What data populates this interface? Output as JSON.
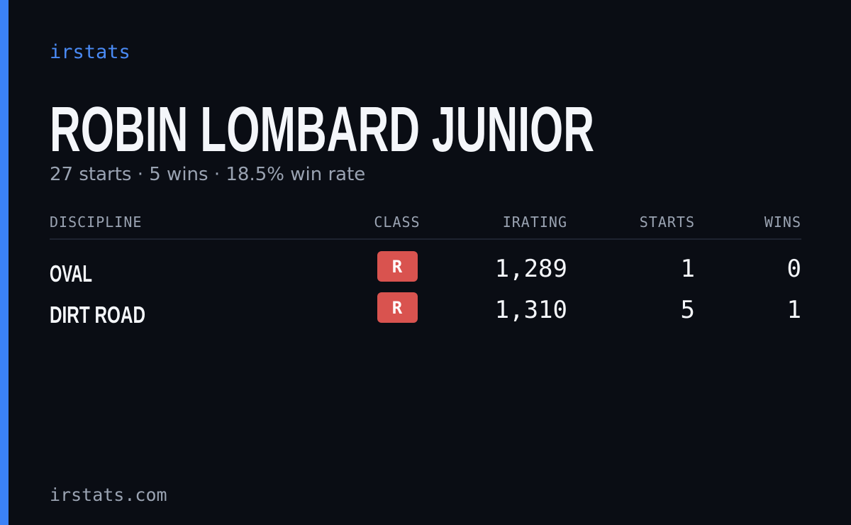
{
  "brand": "irstats",
  "title": "ROBIN LOMBARD JUNIOR",
  "subtitle": "27 starts · 5 wins · 18.5% win rate",
  "table": {
    "columns": [
      "DISCIPLINE",
      "CLASS",
      "IRATING",
      "STARTS",
      "WINS"
    ],
    "rows": [
      [
        "OVAL",
        "R",
        "1,289",
        "1",
        "0"
      ],
      [
        "DIRT ROAD",
        "R",
        "1,310",
        "5",
        "1"
      ]
    ]
  },
  "footer": "irstats.com"
}
